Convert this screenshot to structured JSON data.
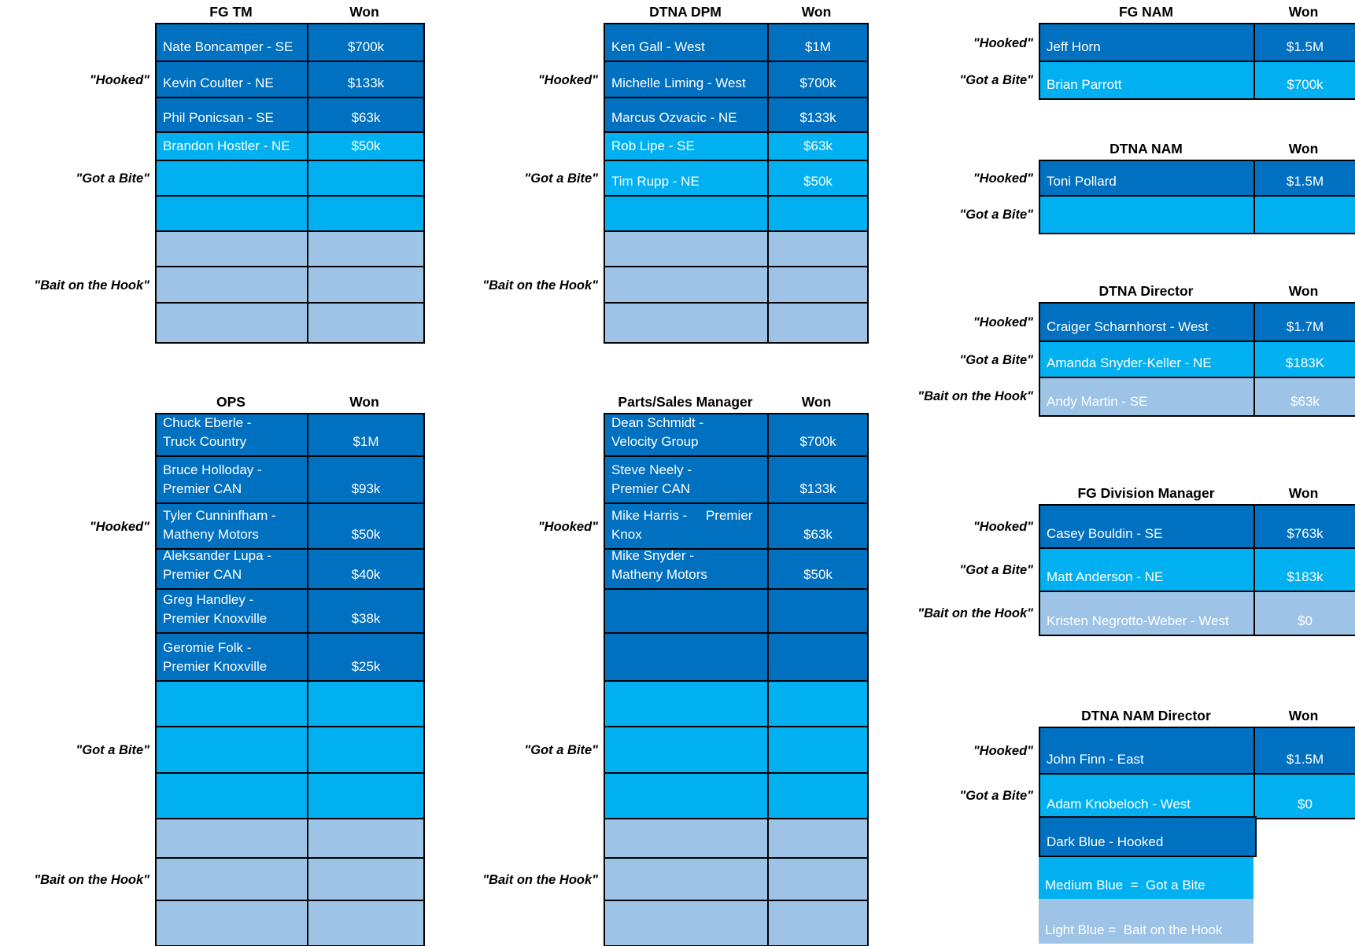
{
  "colors": {
    "hooked": "#0070C0",
    "got_a_bite": "#00B0F0",
    "bait_on_the_hook": "#9DC3E6",
    "gridline": "#000000",
    "cell_text": "#FFFFFF",
    "heading_text": "#000000"
  },
  "won_header": "Won",
  "stage_names": {
    "hooked": "Hooked",
    "got_a_bite": "Got a Bite",
    "bait_on_the_hook": "Bait on the Hook"
  },
  "tables": [
    {
      "id": "fg-tm",
      "title": "FG TM",
      "sections": [
        {
          "label": "\"Hooked\"",
          "shade": "hooked",
          "rows": [
            {
              "name": "Nate Boncamper - SE",
              "won": "$700k"
            },
            {
              "name": "Kevin Coulter - NE",
              "won": "$133k"
            },
            {
              "name": "Phil Ponicsan - SE",
              "won": "$63k"
            }
          ]
        },
        {
          "label": "\"Got a Bite\"",
          "shade": "got_a_bite",
          "rows": [
            {
              "name": "Brandon Hostler - NE",
              "won": "$50k"
            },
            {
              "name": "",
              "won": ""
            },
            {
              "name": "",
              "won": ""
            }
          ]
        },
        {
          "label": "\"Bait on the Hook\"",
          "shade": "bait_on_the_hook",
          "rows": [
            {
              "name": "",
              "won": ""
            },
            {
              "name": "",
              "won": ""
            },
            {
              "name": "",
              "won": ""
            }
          ]
        }
      ]
    },
    {
      "id": "dtna-dpm",
      "title": "DTNA DPM",
      "sections": [
        {
          "label": "\"Hooked\"",
          "shade": "hooked",
          "rows": [
            {
              "name": "Ken Gall - West",
              "won": "$1M"
            },
            {
              "name": "Michelle Liming - West",
              "won": "$700k"
            },
            {
              "name": "Marcus Ozvacic - NE",
              "won": "$133k"
            }
          ]
        },
        {
          "label": "\"Got a Bite\"",
          "shade": "got_a_bite",
          "rows": [
            {
              "name": "Rob Lipe - SE",
              "won": "$63k"
            },
            {
              "name": "Tim Rupp - NE",
              "won": "$50k"
            },
            {
              "name": "",
              "won": ""
            }
          ]
        },
        {
          "label": "\"Bait on the Hook\"",
          "shade": "bait_on_the_hook",
          "rows": [
            {
              "name": "",
              "won": ""
            },
            {
              "name": "",
              "won": ""
            },
            {
              "name": "",
              "won": ""
            }
          ]
        }
      ]
    },
    {
      "id": "fg-nam",
      "title": "FG NAM",
      "sections": [
        {
          "label": "\"Hooked\"",
          "shade": "hooked",
          "rows": [
            {
              "name": "Jeff Horn",
              "won": "$1.5M"
            }
          ]
        },
        {
          "label": "\"Got a Bite\"",
          "shade": "got_a_bite",
          "rows": [
            {
              "name": "Brian Parrott",
              "won": "$700k"
            }
          ]
        }
      ]
    },
    {
      "id": "dtna-nam",
      "title": "DTNA NAM",
      "sections": [
        {
          "label": "\"Hooked\"",
          "shade": "hooked",
          "rows": [
            {
              "name": "Toni Pollard",
              "won": "$1.5M"
            }
          ]
        },
        {
          "label": "\"Got a Bite\"",
          "shade": "got_a_bite",
          "rows": [
            {
              "name": "",
              "won": ""
            }
          ]
        }
      ]
    },
    {
      "id": "dtna-director",
      "title": "DTNA Director",
      "sections": [
        {
          "label": "\"Hooked\"",
          "shade": "hooked",
          "rows": [
            {
              "name": "Craiger Scharnhorst - West",
              "won": "$1.7M"
            }
          ]
        },
        {
          "label": "\"Got a Bite\"",
          "shade": "got_a_bite",
          "rows": [
            {
              "name": "Amanda Snyder-Keller - NE",
              "won": "$183K"
            }
          ]
        },
        {
          "label": "\"Bait on the Hook\"",
          "shade": "bait_on_the_hook",
          "rows": [
            {
              "name": "Andy Martin - SE",
              "won": "$63k"
            }
          ]
        }
      ]
    },
    {
      "id": "ops",
      "title": "OPS",
      "sections": [
        {
          "label": "\"Hooked\"",
          "shade": "hooked",
          "rows": [
            {
              "name": "Chuck Eberle -\nTruck Country",
              "won": "$1M"
            },
            {
              "name": "Bruce Holloday -\nPremier CAN",
              "won": "$93k"
            },
            {
              "name": "Tyler Cunninfham -\nMatheny Motors",
              "won": "$50k"
            },
            {
              "name": "Aleksander Lupa -\nPremier CAN",
              "won": "$40k"
            },
            {
              "name": "Greg Handley -\nPremier Knoxville",
              "won": "$38k"
            },
            {
              "name": "Geromie Folk -\nPremier Knoxville",
              "won": "$25k"
            }
          ]
        },
        {
          "label": "\"Got a Bite\"",
          "shade": "got_a_bite",
          "rows": [
            {
              "name": "",
              "won": ""
            },
            {
              "name": "",
              "won": ""
            },
            {
              "name": "",
              "won": ""
            }
          ]
        },
        {
          "label": "\"Bait on the Hook\"",
          "shade": "bait_on_the_hook",
          "rows": [
            {
              "name": "",
              "won": ""
            },
            {
              "name": "",
              "won": ""
            },
            {
              "name": "",
              "won": ""
            }
          ]
        }
      ]
    },
    {
      "id": "parts-sales-manager",
      "title": "Parts/Sales Manager",
      "sections": [
        {
          "label": "\"Hooked\"",
          "shade": "hooked",
          "rows": [
            {
              "name": "Dean Schmidt -\nVelocity Group",
              "won": "$700k"
            },
            {
              "name": "Steve Neely -\nPremier CAN",
              "won": "$133k"
            },
            {
              "name": "Mike Harris -     Premier\nKnox",
              "won": "$63k"
            },
            {
              "name": "Mike Snyder -\nMatheny Motors",
              "won": "$50k"
            },
            {
              "name": "",
              "won": ""
            },
            {
              "name": "",
              "won": ""
            }
          ]
        },
        {
          "label": "\"Got a Bite\"",
          "shade": "got_a_bite",
          "rows": [
            {
              "name": "",
              "won": ""
            },
            {
              "name": "",
              "won": ""
            },
            {
              "name": "",
              "won": ""
            }
          ]
        },
        {
          "label": "\"Bait on the Hook\"",
          "shade": "bait_on_the_hook",
          "rows": [
            {
              "name": "",
              "won": ""
            },
            {
              "name": "",
              "won": ""
            },
            {
              "name": "",
              "won": ""
            }
          ]
        }
      ]
    },
    {
      "id": "fg-division-manager",
      "title": "FG Division Manager",
      "sections": [
        {
          "label": "\"Hooked\"",
          "shade": "hooked",
          "rows": [
            {
              "name": "Casey Bouldin - SE",
              "won": "$763k"
            }
          ]
        },
        {
          "label": "\"Got a Bite\"",
          "shade": "got_a_bite",
          "rows": [
            {
              "name": "Matt Anderson - NE",
              "won": "$183k"
            }
          ]
        },
        {
          "label": "\"Bait on the Hook\"",
          "shade": "bait_on_the_hook",
          "rows": [
            {
              "name": "Kristen Negrotto-Weber - West",
              "won": "$0"
            }
          ]
        }
      ]
    },
    {
      "id": "dtna-nam-director",
      "title": "DTNA NAM Director",
      "sections": [
        {
          "label": "\"Hooked\"",
          "shade": "hooked",
          "rows": [
            {
              "name": "John Finn - East",
              "won": "$1.5M"
            }
          ]
        },
        {
          "label": "\"Got a Bite\"",
          "shade": "got_a_bite",
          "rows": [
            {
              "name": "Adam Knobeloch - West",
              "won": "$0"
            }
          ]
        }
      ]
    }
  ],
  "legend": {
    "items": [
      {
        "text": "Dark Blue - Hooked",
        "shade": "hooked",
        "bordered": true
      },
      {
        "text": "Medium Blue  =  Got a Bite",
        "shade": "got_a_bite",
        "bordered": false
      },
      {
        "text": "Light Blue =  Bait on the Hook",
        "shade": "bait_on_the_hook",
        "bordered": false
      }
    ]
  }
}
